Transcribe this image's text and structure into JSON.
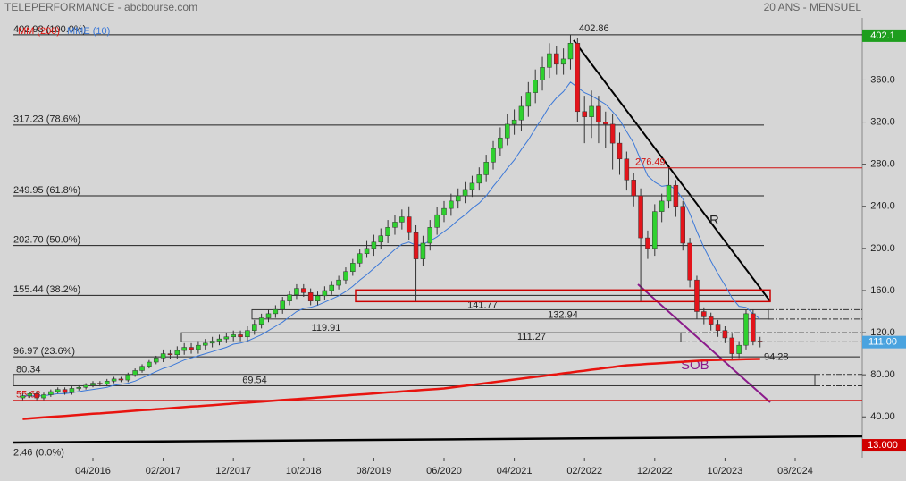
{
  "chart_data": {
    "type": "candlestick",
    "title": "TELEPERFORMANCE - abcbourse.com",
    "subtitle": "20 ANS - MENSUEL",
    "categories": [
      null,
      null,
      null,
      null,
      null,
      null,
      null,
      null,
      null,
      null,
      "04/2016",
      null,
      null,
      null,
      null,
      null,
      null,
      null,
      null,
      null,
      "02/2017",
      null,
      null,
      null,
      null,
      null,
      null,
      null,
      null,
      null,
      "12/2017",
      null,
      null,
      null,
      null,
      null,
      null,
      null,
      null,
      null,
      "10/2018",
      null,
      null,
      null,
      null,
      null,
      null,
      null,
      null,
      null,
      "08/2019",
      null,
      null,
      null,
      null,
      null,
      null,
      null,
      null,
      null,
      "06/2020",
      null,
      null,
      null,
      null,
      null,
      null,
      null,
      null,
      null,
      "04/2021",
      null,
      null,
      null,
      null,
      null,
      null,
      null,
      null,
      null,
      "02/2022",
      null,
      null,
      null,
      null,
      null,
      null,
      null,
      null,
      null,
      "12/2022",
      null,
      null,
      null,
      null,
      null,
      null,
      null,
      null,
      null,
      "10/2023",
      null,
      null,
      null,
      null,
      null,
      null,
      null,
      null,
      null,
      "08/2024",
      null,
      null,
      null,
      null,
      null,
      null,
      null,
      null,
      null
    ],
    "open": [
      58,
      60,
      62,
      58,
      61,
      64,
      66,
      63,
      67,
      68,
      70,
      72,
      71,
      74,
      76,
      75,
      80,
      84,
      88,
      92,
      96,
      100,
      99,
      103,
      106,
      104,
      108,
      110,
      112,
      114,
      116,
      118,
      116,
      122,
      128,
      134,
      138,
      142,
      150,
      156,
      162,
      158,
      150,
      155,
      160,
      165,
      170,
      178,
      186,
      195,
      200,
      206,
      212,
      220,
      225,
      230,
      215,
      190,
      205,
      220,
      232,
      238,
      245,
      250,
      256,
      262,
      270,
      282,
      295,
      305,
      318,
      322,
      335,
      348,
      360,
      372,
      385,
      375,
      380,
      395,
      330,
      325,
      335,
      320,
      318,
      300,
      285,
      265,
      250,
      210,
      200,
      235,
      245,
      260,
      240,
      205,
      170,
      140,
      135,
      128,
      122,
      115,
      100,
      108,
      138,
      112,
      null,
      null,
      null,
      null,
      null,
      null,
      null,
      null,
      null,
      null,
      null,
      null,
      null,
      null
    ],
    "high": [
      62,
      64,
      64,
      63,
      66,
      68,
      68,
      69,
      70,
      72,
      74,
      74,
      76,
      78,
      78,
      82,
      86,
      90,
      94,
      98,
      104,
      104,
      107,
      110,
      110,
      112,
      114,
      116,
      118,
      120,
      122,
      122,
      126,
      132,
      138,
      142,
      146,
      154,
      160,
      166,
      166,
      162,
      159,
      164,
      169,
      174,
      182,
      190,
      199,
      207,
      213,
      219,
      227,
      232,
      237,
      240,
      222,
      212,
      227,
      239,
      245,
      252,
      257,
      263,
      269,
      277,
      289,
      302,
      315,
      328,
      332,
      345,
      358,
      370,
      382,
      395,
      392,
      390,
      402.86,
      400,
      345,
      350,
      345,
      330,
      328,
      310,
      292,
      272,
      257,
      217,
      242,
      252,
      276.49,
      265,
      245,
      210,
      174,
      144,
      139,
      132,
      126,
      119,
      112,
      142,
      142,
      116,
      null,
      null,
      null,
      null,
      null,
      null,
      null,
      null,
      null,
      null,
      null,
      null,
      null,
      null
    ],
    "low": [
      56,
      58,
      56,
      56,
      59,
      62,
      61,
      61,
      65,
      66,
      68,
      69,
      69,
      72,
      73,
      73,
      78,
      82,
      86,
      90,
      92,
      95,
      95,
      99,
      100,
      100,
      104,
      106,
      108,
      110,
      112,
      112,
      112,
      118,
      124,
      130,
      134,
      138,
      146,
      152,
      154,
      146,
      146,
      151,
      156,
      161,
      166,
      174,
      182,
      191,
      193,
      199,
      205,
      213,
      218,
      208,
      150,
      183,
      198,
      213,
      225,
      231,
      238,
      243,
      249,
      255,
      263,
      275,
      288,
      298,
      308,
      312,
      325,
      338,
      350,
      362,
      365,
      365,
      370,
      320,
      300,
      305,
      300,
      295,
      275,
      270,
      255,
      240,
      150,
      190,
      193,
      225,
      238,
      230,
      198,
      163,
      133,
      128,
      122,
      116,
      110,
      95,
      96,
      104,
      108,
      106,
      null,
      null,
      null,
      null,
      null,
      null,
      null,
      null,
      null,
      null,
      null,
      null,
      null,
      null
    ],
    "close": [
      60,
      62,
      58,
      61,
      64,
      66,
      63,
      67,
      68,
      70,
      72,
      71,
      74,
      76,
      75,
      80,
      84,
      88,
      92,
      96,
      100,
      99,
      103,
      106,
      104,
      108,
      110,
      112,
      114,
      116,
      118,
      116,
      122,
      128,
      134,
      138,
      142,
      150,
      156,
      162,
      158,
      150,
      155,
      160,
      165,
      170,
      178,
      186,
      195,
      200,
      206,
      212,
      220,
      225,
      230,
      215,
      190,
      205,
      220,
      232,
      238,
      245,
      250,
      256,
      262,
      270,
      282,
      295,
      305,
      318,
      322,
      335,
      348,
      360,
      372,
      385,
      375,
      380,
      395,
      330,
      325,
      335,
      320,
      318,
      300,
      285,
      265,
      250,
      210,
      200,
      235,
      245,
      260,
      240,
      205,
      170,
      140,
      135,
      128,
      122,
      115,
      100,
      108,
      138,
      112,
      111,
      null,
      null,
      null,
      null,
      null,
      null,
      null,
      null,
      null,
      null,
      null,
      null,
      null,
      null
    ],
    "up_color": "#2fd12f",
    "down_color": "#e3141b",
    "series": [
      {
        "name": "MM (200)",
        "color": "#e8140f",
        "values": [
          38,
          38.5,
          39,
          39.5,
          40,
          40.4,
          40.9,
          41.4,
          41.9,
          42.4,
          42.9,
          43.3,
          43.8,
          44.3,
          44.8,
          45.3,
          45.8,
          46.3,
          46.7,
          47.2,
          47.7,
          48.2,
          48.7,
          49.2,
          49.7,
          50.1,
          50.6,
          51.1,
          51.6,
          52.1,
          52.6,
          53.1,
          53.5,
          54,
          54.5,
          55,
          55.5,
          56,
          56.4,
          56.9,
          57.4,
          57.9,
          58.4,
          58.8,
          59.3,
          59.8,
          60.3,
          60.8,
          61.2,
          61.7,
          62.2,
          62.7,
          63.2,
          63.6,
          64.1,
          64.6,
          65.1,
          65.6,
          66,
          66.5,
          67,
          67.8,
          68.7,
          69.5,
          70.4,
          71.2,
          72.1,
          72.9,
          73.8,
          74.6,
          75.5,
          76.3,
          77.2,
          78,
          78.8,
          79.7,
          80.5,
          81.4,
          82.2,
          83.1,
          83.9,
          84.8,
          85.6,
          86.5,
          87.3,
          88.2,
          89,
          89.4,
          89.8,
          90.3,
          90.7,
          91.1,
          91.5,
          91.9,
          92.3,
          92.8,
          93.2,
          93.6,
          94,
          94.1,
          94.3,
          94.4,
          94.6,
          94.7,
          94.9,
          95,
          null,
          null,
          null,
          null,
          null,
          null,
          null,
          null,
          null,
          null,
          null,
          null,
          null,
          null
        ]
      },
      {
        "name": "MME (10)",
        "color": "#3b78d8",
        "values": [
          60,
          60,
          60,
          60,
          61,
          62,
          62,
          63,
          64,
          65,
          66,
          67,
          68,
          70,
          71,
          72,
          74,
          77,
          80,
          83,
          86,
          88,
          91,
          94,
          96,
          98,
          100,
          102,
          104,
          106,
          109,
          110,
          112,
          115,
          118,
          122,
          126,
          130,
          135,
          140,
          143,
          144,
          146,
          149,
          152,
          155,
          159,
          164,
          170,
          175,
          181,
          187,
          193,
          199,
          204,
          206,
          203,
          204,
          207,
          211,
          216,
          221,
          227,
          232,
          238,
          243,
          250,
          259,
          267,
          276,
          284,
          294,
          303,
          314,
          324,
          335,
          343,
          349,
          358,
          353,
          348,
          345,
          341,
          337,
          330,
          322,
          311,
          300,
          284,
          269,
          263,
          259,
          260,
          256,
          247,
          233,
          216,
          201,
          188,
          176,
          165,
          153,
          145,
          144,
          138,
          133,
          null,
          null,
          null,
          null,
          null,
          null,
          null,
          null,
          null,
          null,
          null,
          null,
          null,
          null
        ]
      }
    ],
    "ylim": [
      2,
      419
    ],
    "yticks": [
      {
        "value": 360,
        "label": "360.0"
      },
      {
        "value": 320,
        "label": "320.0"
      },
      {
        "value": 280,
        "label": "280.0"
      },
      {
        "value": 240,
        "label": "240.0"
      },
      {
        "value": 200,
        "label": "200.0"
      },
      {
        "value": 160,
        "label": "160.0"
      },
      {
        "value": 120,
        "label": "120.0"
      },
      {
        "value": 80,
        "label": "80.00"
      },
      {
        "value": 40,
        "label": "40.00"
      }
    ],
    "price_tags": [
      {
        "value": 402.1,
        "label": "402.1",
        "color": "#1e9e1e"
      },
      {
        "value": 111,
        "label": "111.00",
        "color": "#4aa3df"
      },
      {
        "value": 13,
        "label": "13.000",
        "color": "#d00000"
      }
    ],
    "levels": [
      {
        "label": "402.93 (100.0%)",
        "value": 402.93
      },
      {
        "label": "317.23 (78.6%)",
        "value": 317.23
      },
      {
        "label": "249.95 (61.8%)",
        "value": 249.95
      },
      {
        "label": "202.70 (50.0%)",
        "value": 202.7
      },
      {
        "label": "155.44 (38.2%)",
        "value": 155.44
      },
      {
        "label": "96.97 (23.6%)",
        "value": 96.97
      },
      {
        "label": "2.46 (0.0%)",
        "value": 2.46
      },
      {
        "label": "402.86",
        "value": 402.86
      },
      {
        "label": "276.49",
        "value": 276.49
      },
      {
        "label": "141.77",
        "value": 141.77
      },
      {
        "label": "132.94",
        "value": 132.94
      },
      {
        "label": "119.91",
        "value": 119.91
      },
      {
        "label": "111.27",
        "value": 111.27
      },
      {
        "label": "94.28",
        "value": 94.28
      },
      {
        "label": "80.34",
        "value": 80.34
      },
      {
        "label": "69.54",
        "value": 69.54
      },
      {
        "label": "55.68",
        "value": 55.68
      }
    ],
    "annotations": [
      "R",
      "SOB"
    ]
  }
}
